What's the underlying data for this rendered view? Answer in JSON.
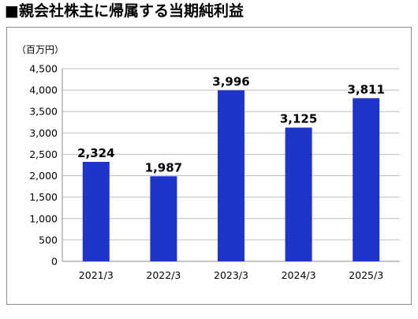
{
  "page": {
    "title": "■親会社株主に帰属する当期純利益"
  },
  "chart_data": {
    "type": "bar",
    "title": "",
    "unit_label": "（百万円）",
    "xlabel": "",
    "ylabel": "",
    "categories": [
      "2021/3",
      "2022/3",
      "2023/3",
      "2024/3",
      "2025/3"
    ],
    "values": [
      2324,
      1987,
      3996,
      3125,
      3811
    ],
    "value_labels": [
      "2,324",
      "1,987",
      "3,996",
      "3,125",
      "3,811"
    ],
    "ylim": [
      0,
      4500
    ],
    "yticks": [
      0,
      500,
      1000,
      1500,
      2000,
      2500,
      3000,
      3500,
      4000,
      4500
    ],
    "ytick_labels": [
      "0",
      "500",
      "1,000",
      "1,500",
      "2,000",
      "2,500",
      "3,000",
      "3,500",
      "4,000",
      "4,500"
    ],
    "grid": true,
    "bar_color": "#1f34c8",
    "grid_color": "#bfbfbf",
    "axis_color": "#8c8c8c"
  }
}
